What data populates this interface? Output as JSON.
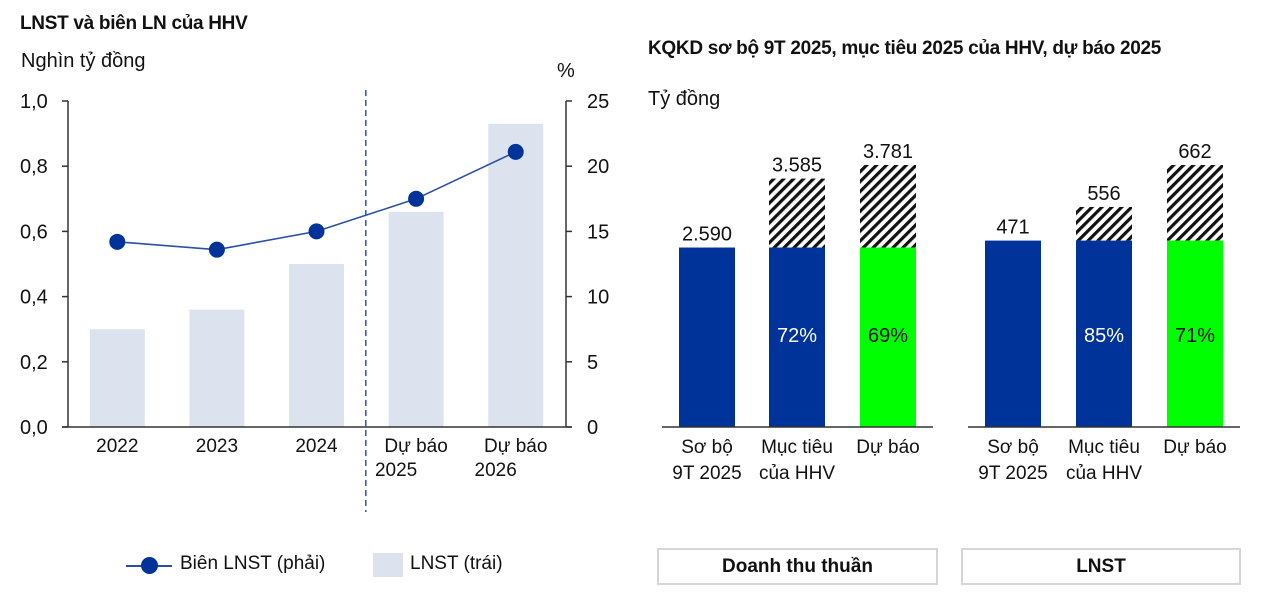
{
  "chart_data": [
    {
      "type": "bar+line",
      "title": "LNST và biên LN của HHV",
      "ylabel": "Nghìn tỷ đồng",
      "y2label": "%",
      "categories": [
        "2022",
        "2023",
        "2024",
        "Dự báo 2025",
        "Dự báo 2026"
      ],
      "category_lines": [
        [
          "2022"
        ],
        [
          "2023"
        ],
        [
          "2024"
        ],
        [
          "Dự báo",
          "2025"
        ],
        [
          "Dự báo",
          "2026"
        ]
      ],
      "ylim": [
        0,
        1.0
      ],
      "yticks": [
        0,
        0.2,
        0.4,
        0.6,
        0.8,
        1.0
      ],
      "ytick_labels": [
        "0,0",
        "0,2",
        "0,4",
        "0,6",
        "0,8",
        "1,0"
      ],
      "y2lim": [
        0,
        25
      ],
      "y2ticks": [
        0,
        5,
        10,
        15,
        20,
        25
      ],
      "y2tick_labels": [
        "0",
        "5",
        "10",
        "15",
        "20",
        "25"
      ],
      "forecast_divider_after": "2024",
      "series": [
        {
          "name": "LNST (trái)",
          "type": "bar",
          "axis": "left",
          "values": [
            0.3,
            0.36,
            0.5,
            0.66,
            0.93
          ]
        },
        {
          "name": "Biên LNST (phải)",
          "type": "line",
          "axis": "right",
          "values": [
            14.2,
            13.6,
            15.0,
            17.5,
            21.1
          ]
        }
      ],
      "legend": {
        "position": "bottom",
        "items": [
          "Biên LNST (phải)",
          "LNST (trái)"
        ]
      },
      "colors": {
        "bar": "#dde3ee",
        "line": "#003399",
        "axis": "#333333",
        "divider": "#2a55a8"
      }
    },
    {
      "type": "stacked-bar",
      "title": "KQKD sơ bộ 9T 2025, mục tiêu 2025 của HHV, dự báo 2025",
      "ylabel": "Tỷ đồng",
      "groups": [
        {
          "name": "Doanh thu thuần",
          "categories": [
            "Sơ bộ 9T 2025",
            "Mục tiêu của HHV",
            "Dự báo"
          ],
          "category_lines": [
            [
              "Sơ bộ",
              "9T 2025"
            ],
            [
              "Mục tiêu",
              "của HHV"
            ],
            [
              "Dự báo"
            ]
          ],
          "base_value": 2590,
          "totals": [
            2590,
            3585,
            3781
          ],
          "total_labels": [
            "2.590",
            "3.585",
            "3.781"
          ],
          "completion_labels": [
            "",
            "72%",
            "69%"
          ],
          "completion_pct": [
            null,
            72,
            69
          ],
          "base_colors": [
            "#003399",
            "#003399",
            "#00ff00"
          ]
        },
        {
          "name": "LNST",
          "categories": [
            "Sơ bộ 9T 2025",
            "Mục tiêu của HHV",
            "Dự báo"
          ],
          "category_lines": [
            [
              "Sơ bộ",
              "9T 2025"
            ],
            [
              "Mục tiêu",
              "của HHV"
            ],
            [
              "Dự báo"
            ]
          ],
          "base_value": 471,
          "totals": [
            471,
            556,
            662
          ],
          "total_labels": [
            "471",
            "556",
            "662"
          ],
          "completion_labels": [
            "",
            "85%",
            "71%"
          ],
          "completion_pct": [
            null,
            85,
            71
          ],
          "base_colors": [
            "#003399",
            "#003399",
            "#00ff00"
          ]
        }
      ],
      "remaining_pattern": "diagonal-hatch-black",
      "group_labels": [
        "Doanh thu thuần",
        "LNST"
      ]
    }
  ]
}
